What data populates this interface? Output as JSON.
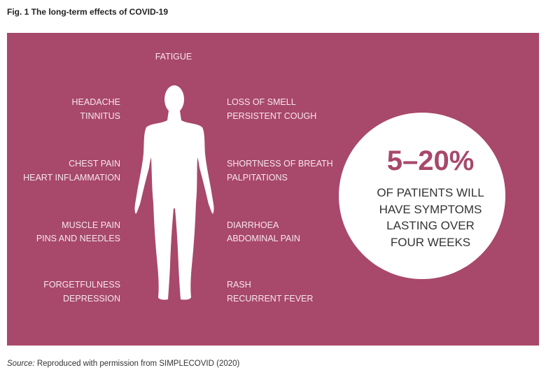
{
  "title": "Fig. 1 The long-term effects of COVID-19",
  "top_label": "FATIGUE",
  "left_groups": [
    [
      "HEADACHE",
      "TINNITUS"
    ],
    [
      "CHEST PAIN",
      "HEART INFLAMMATION"
    ],
    [
      "MUSCLE PAIN",
      "PINS AND NEEDLES"
    ],
    [
      "FORGETFULNESS",
      "DEPRESSION"
    ]
  ],
  "right_groups": [
    [
      "LOSS OF SMELL",
      "PERSISTENT COUGH"
    ],
    [
      "SHORTNESS OF BREATH",
      "PALPITATIONS"
    ],
    [
      "DIARRHOEA",
      "ABDOMINAL PAIN"
    ],
    [
      "RASH",
      "RECURRENT FEVER"
    ]
  ],
  "stat": {
    "value": "5–20%",
    "lines": [
      "OF PATIENTS WILL",
      "HAVE SYMPTOMS",
      "LASTING OVER",
      "FOUR WEEKS"
    ]
  },
  "source": {
    "prefix": "Source:",
    "text": " Reproduced with permission from SIMPLECOVID (2020)"
  },
  "colors": {
    "panel": "#a8486b",
    "circle": "#ffffff",
    "accent": "#a8486b"
  },
  "icons": [
    "human-body-silhouette"
  ]
}
